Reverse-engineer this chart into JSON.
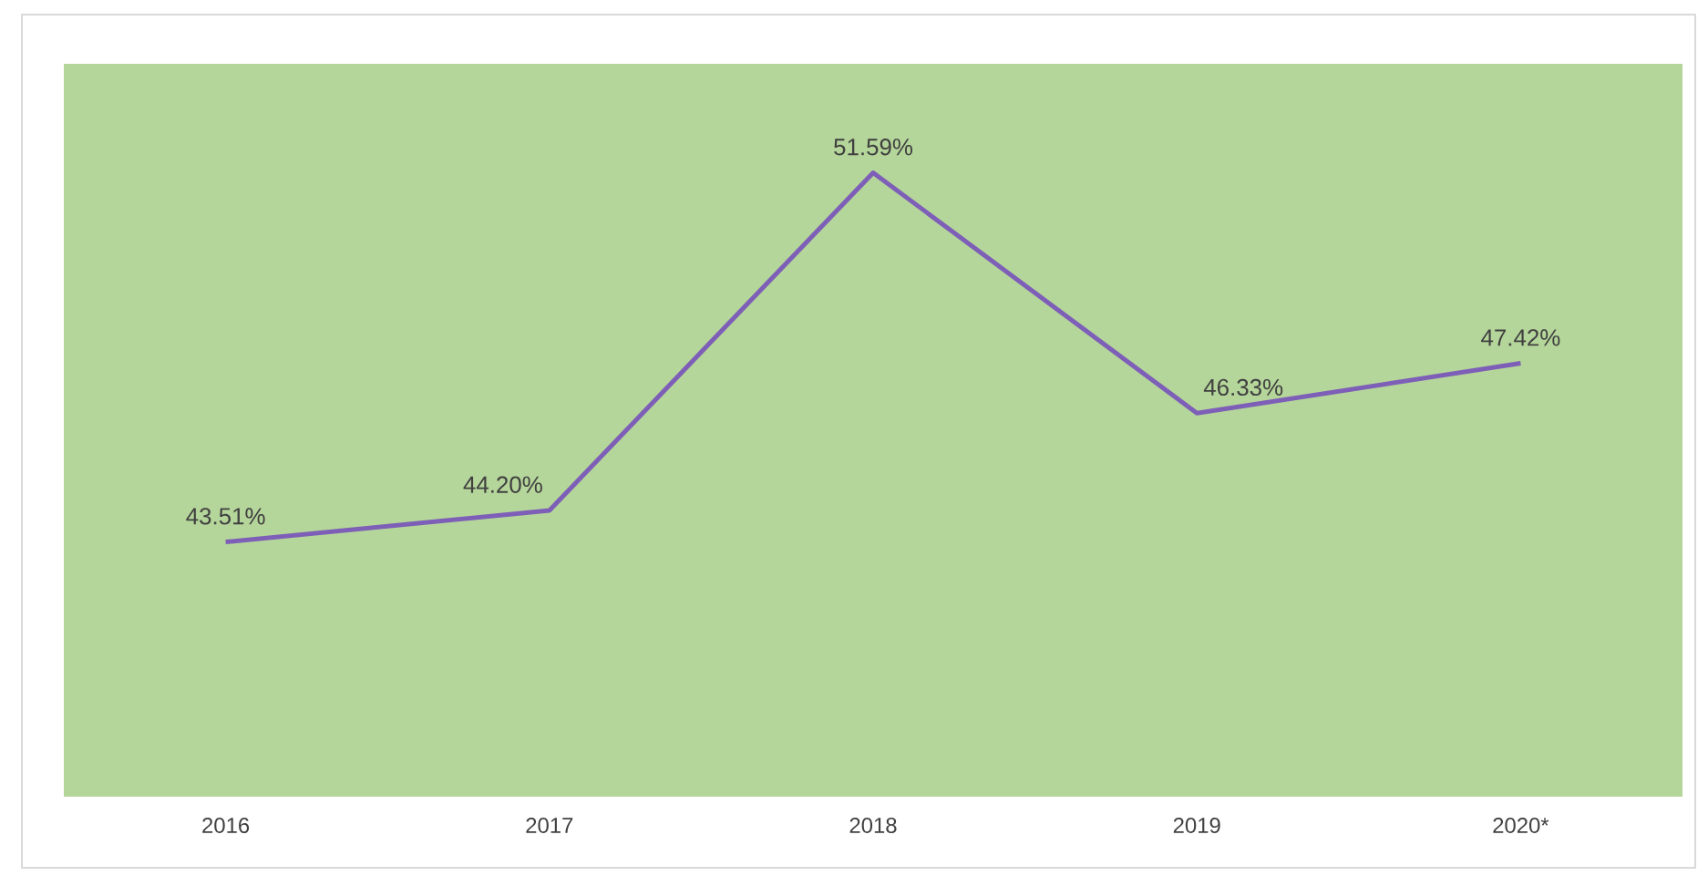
{
  "chart_data": {
    "type": "line",
    "categories": [
      "2016",
      "2017",
      "2018",
      "2019",
      "2020*"
    ],
    "series": [
      {
        "color": "#7e5fb8",
        "values": [
          43.51,
          44.2,
          51.59,
          46.33,
          47.42
        ],
        "value_labels": [
          "43.51%",
          "44.20%",
          "51.59%",
          "46.33%",
          "47.42%"
        ]
      }
    ],
    "tick_labels": "x",
    "marker": "none",
    "line_style": "solid"
  }
}
